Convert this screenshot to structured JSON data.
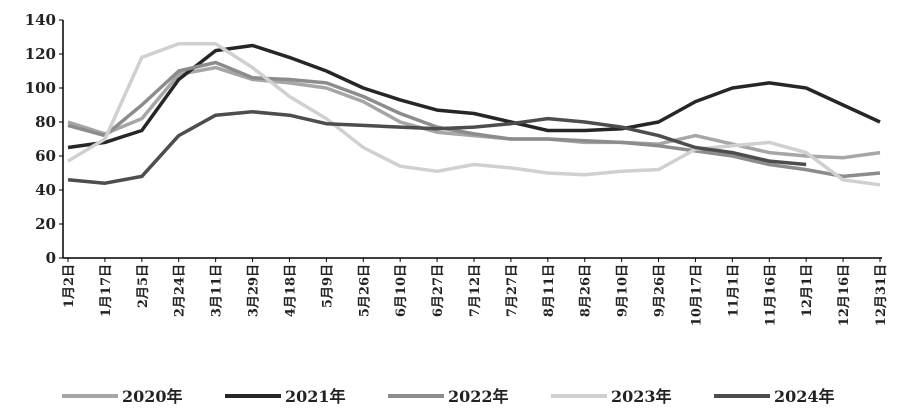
{
  "chart_data": {
    "type": "line",
    "categories": [
      "1月2日",
      "1月17日",
      "2月5日",
      "2月24日",
      "3月11日",
      "3月29日",
      "4月18日",
      "5月9日",
      "5月26日",
      "6月10日",
      "6月27日",
      "7月12日",
      "7月27日",
      "8月11日",
      "8月26日",
      "9月10日",
      "9月26日",
      "10月17日",
      "11月1日",
      "11月16日",
      "12月1日",
      "12月16日",
      "12月31日"
    ],
    "series": [
      {
        "name": "2020年",
        "color": "#a6a6a6",
        "values": [
          80,
          73,
          82,
          108,
          112,
          105,
          103,
          100,
          92,
          80,
          74,
          72,
          70,
          70,
          68,
          68,
          67,
          72,
          67,
          62,
          60,
          59,
          62
        ]
      },
      {
        "name": "2021年",
        "color": "#262626",
        "values": [
          65,
          68,
          75,
          105,
          122,
          125,
          118,
          110,
          100,
          93,
          87,
          85,
          80,
          75,
          75,
          76,
          80,
          92,
          100,
          103,
          100,
          90,
          80
        ]
      },
      {
        "name": "2022年",
        "color": "#8c8c8c",
        "values": [
          78,
          72,
          90,
          110,
          115,
          106,
          105,
          103,
          95,
          85,
          77,
          73,
          70,
          70,
          69,
          68,
          66,
          63,
          60,
          55,
          52,
          48,
          50
        ]
      },
      {
        "name": "2023年",
        "color": "#d0d0d0",
        "values": [
          57,
          70,
          118,
          126,
          126,
          112,
          95,
          82,
          65,
          54,
          51,
          55,
          53,
          50,
          49,
          51,
          52,
          64,
          66,
          68,
          62,
          46,
          43
        ]
      },
      {
        "name": "2024年",
        "color": "#4d4d4d",
        "values": [
          46,
          44,
          48,
          72,
          84,
          86,
          84,
          79,
          78,
          77,
          76,
          77,
          79,
          82,
          80,
          77,
          72,
          65,
          62,
          57,
          55,
          null,
          null
        ]
      }
    ],
    "ylim": [
      0,
      140
    ],
    "yticks": [
      0,
      20,
      40,
      60,
      80,
      100,
      120,
      140
    ]
  }
}
